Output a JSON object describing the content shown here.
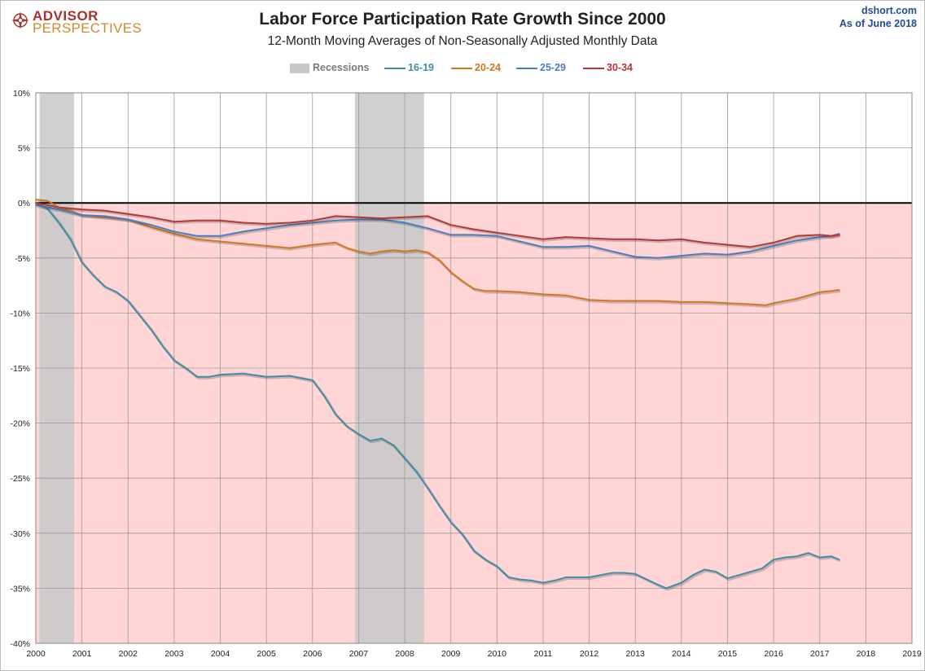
{
  "header": {
    "logo_line1": "ADVISOR",
    "logo_line2": "PERSPECTIVES",
    "source_line1": "dshort.com",
    "source_line2": "As of June 2018"
  },
  "colors": {
    "plot_negative_bg": "#ffd5d5",
    "recession_band": "#c8c8c8",
    "grid": "#9b9b9b",
    "zero_line": "#000000"
  },
  "legend": {
    "recessions_label": "Recessions",
    "items": [
      {
        "label": "16-19",
        "color": "#3f8fa6"
      },
      {
        "label": "20-24",
        "color": "#d2781e"
      },
      {
        "label": "25-29",
        "color": "#4a7fbf"
      },
      {
        "label": "30-34",
        "color": "#b03a3a"
      }
    ]
  },
  "chart_data": {
    "type": "line",
    "title": "Labor Force Participation Rate Growth Since 2000",
    "subtitle": "12-Month Moving Averages of Non-Seasonally Adjusted Monthly Data",
    "xlabel": "",
    "ylabel": "",
    "xlim": [
      2000,
      2019
    ],
    "ylim": [
      -40,
      10
    ],
    "y_ticks": [
      "10%",
      "5%",
      "0%",
      "-5%",
      "-10%",
      "-15%",
      "-20%",
      "-25%",
      "-30%",
      "-35%",
      "-40%"
    ],
    "y_tick_values": [
      10,
      5,
      0,
      -5,
      -10,
      -15,
      -20,
      -25,
      -30,
      -35,
      -40
    ],
    "x_ticks": [
      "2000",
      "2001",
      "2002",
      "2003",
      "2004",
      "2005",
      "2006",
      "2007",
      "2008",
      "2009",
      "2010",
      "2011",
      "2012",
      "2013",
      "2014",
      "2015",
      "2016",
      "2017",
      "2018",
      "2019"
    ],
    "x_tick_values": [
      2000,
      2001,
      2002,
      2003,
      2004,
      2005,
      2006,
      2007,
      2008,
      2009,
      2010,
      2011,
      2012,
      2013,
      2014,
      2015,
      2016,
      2017,
      2018,
      2019
    ],
    "grid": true,
    "legend_position": "top-center",
    "recessions": [
      {
        "start": 2000.08,
        "end": 2000.83
      },
      {
        "start": 2006.92,
        "end": 2008.42
      }
    ],
    "series": [
      {
        "name": "16-19",
        "x": [
          2000.0,
          2000.25,
          2000.5,
          2000.75,
          2001.0,
          2001.25,
          2001.5,
          2001.75,
          2002.0,
          2002.25,
          2002.5,
          2002.75,
          2003.0,
          2003.25,
          2003.5,
          2003.75,
          2004.0,
          2004.5,
          2005.0,
          2005.5,
          2006.0,
          2006.25,
          2006.5,
          2006.75,
          2007.0,
          2007.25,
          2007.5,
          2007.75,
          2008.0,
          2008.25,
          2008.5,
          2008.75,
          2009.0,
          2009.25,
          2009.5,
          2009.75,
          2010.0,
          2010.25,
          2010.5,
          2010.75,
          2011.0,
          2011.25,
          2011.5,
          2012.0,
          2012.5,
          2012.75,
          2013.0,
          2013.25,
          2013.5,
          2013.67,
          2014.0,
          2014.25,
          2014.5,
          2014.75,
          2015.0,
          2015.25,
          2015.5,
          2015.75,
          2016.0,
          2016.25,
          2016.5,
          2016.75,
          2017.0,
          2017.25,
          2017.42
        ],
        "values": [
          0.0,
          -0.5,
          -1.8,
          -3.3,
          -5.4,
          -6.6,
          -7.6,
          -8.1,
          -8.9,
          -10.2,
          -11.5,
          -13.0,
          -14.3,
          -15.0,
          -15.8,
          -15.8,
          -15.6,
          -15.5,
          -15.8,
          -15.7,
          -16.1,
          -17.5,
          -19.2,
          -20.3,
          -21.0,
          -21.6,
          -21.4,
          -22.0,
          -23.2,
          -24.4,
          -25.9,
          -27.5,
          -29.0,
          -30.1,
          -31.6,
          -32.4,
          -33.0,
          -34.0,
          -34.2,
          -34.3,
          -34.5,
          -34.3,
          -34.0,
          -34.0,
          -33.6,
          -33.6,
          -33.7,
          -34.2,
          -34.7,
          -35.0,
          -34.5,
          -33.8,
          -33.3,
          -33.5,
          -34.1,
          -33.8,
          -33.5,
          -33.2,
          -32.4,
          -32.2,
          -32.1,
          -31.8,
          -32.2,
          -32.1,
          -32.4
        ]
      },
      {
        "name": "20-24",
        "x": [
          2000.0,
          2000.25,
          2000.5,
          2000.75,
          2001.0,
          2001.25,
          2001.5,
          2002.0,
          2002.5,
          2003.0,
          2003.5,
          2004.0,
          2004.5,
          2005.0,
          2005.5,
          2006.0,
          2006.25,
          2006.5,
          2006.75,
          2007.0,
          2007.25,
          2007.5,
          2007.75,
          2008.0,
          2008.25,
          2008.5,
          2008.75,
          2009.0,
          2009.25,
          2009.5,
          2009.75,
          2010.0,
          2010.5,
          2011.0,
          2011.5,
          2012.0,
          2012.5,
          2013.0,
          2013.5,
          2014.0,
          2014.5,
          2015.0,
          2015.5,
          2015.83,
          2016.0,
          2016.5,
          2017.0,
          2017.25,
          2017.42
        ],
        "values": [
          0.3,
          0.2,
          -0.4,
          -0.7,
          -1.1,
          -1.2,
          -1.3,
          -1.5,
          -2.2,
          -2.8,
          -3.3,
          -3.5,
          -3.7,
          -3.9,
          -4.1,
          -3.8,
          -3.7,
          -3.6,
          -4.1,
          -4.4,
          -4.6,
          -4.4,
          -4.3,
          -4.4,
          -4.3,
          -4.5,
          -5.2,
          -6.3,
          -7.1,
          -7.8,
          -8.0,
          -8.0,
          -8.1,
          -8.3,
          -8.4,
          -8.8,
          -8.9,
          -8.9,
          -8.9,
          -9.0,
          -9.0,
          -9.1,
          -9.2,
          -9.3,
          -9.1,
          -8.7,
          -8.1,
          -8.0,
          -7.9
        ]
      },
      {
        "name": "25-29",
        "x": [
          2000.0,
          2000.5,
          2001.0,
          2001.5,
          2002.0,
          2002.5,
          2003.0,
          2003.5,
          2004.0,
          2004.5,
          2005.0,
          2005.5,
          2006.0,
          2006.5,
          2007.0,
          2007.5,
          2008.0,
          2008.5,
          2009.0,
          2009.5,
          2010.0,
          2010.5,
          2011.0,
          2011.5,
          2012.0,
          2012.5,
          2013.0,
          2013.5,
          2014.0,
          2014.5,
          2015.0,
          2015.5,
          2016.0,
          2016.5,
          2017.0,
          2017.25,
          2017.42
        ],
        "values": [
          -0.2,
          -0.6,
          -1.1,
          -1.2,
          -1.5,
          -2.0,
          -2.6,
          -3.0,
          -3.0,
          -2.6,
          -2.3,
          -2.0,
          -1.8,
          -1.6,
          -1.5,
          -1.5,
          -1.8,
          -2.3,
          -2.9,
          -2.9,
          -3.0,
          -3.5,
          -4.0,
          -4.0,
          -3.9,
          -4.4,
          -4.9,
          -5.0,
          -4.8,
          -4.6,
          -4.7,
          -4.4,
          -3.9,
          -3.4,
          -3.1,
          -3.0,
          -2.8
        ]
      },
      {
        "name": "30-34",
        "x": [
          2000.0,
          2000.5,
          2001.0,
          2001.5,
          2002.0,
          2002.5,
          2003.0,
          2003.5,
          2004.0,
          2004.5,
          2005.0,
          2005.5,
          2006.0,
          2006.5,
          2007.0,
          2007.5,
          2008.0,
          2008.5,
          2009.0,
          2009.5,
          2010.0,
          2010.5,
          2011.0,
          2011.5,
          2012.0,
          2012.5,
          2013.0,
          2013.5,
          2014.0,
          2014.5,
          2015.0,
          2015.5,
          2016.0,
          2016.5,
          2017.0,
          2017.25,
          2017.42
        ],
        "values": [
          0.0,
          -0.4,
          -0.6,
          -0.7,
          -1.0,
          -1.3,
          -1.7,
          -1.6,
          -1.6,
          -1.8,
          -1.9,
          -1.8,
          -1.6,
          -1.2,
          -1.3,
          -1.4,
          -1.3,
          -1.2,
          -2.0,
          -2.4,
          -2.7,
          -3.0,
          -3.3,
          -3.1,
          -3.2,
          -3.3,
          -3.3,
          -3.4,
          -3.3,
          -3.6,
          -3.8,
          -4.0,
          -3.6,
          -3.0,
          -2.9,
          -3.0,
          -2.9
        ]
      }
    ]
  }
}
